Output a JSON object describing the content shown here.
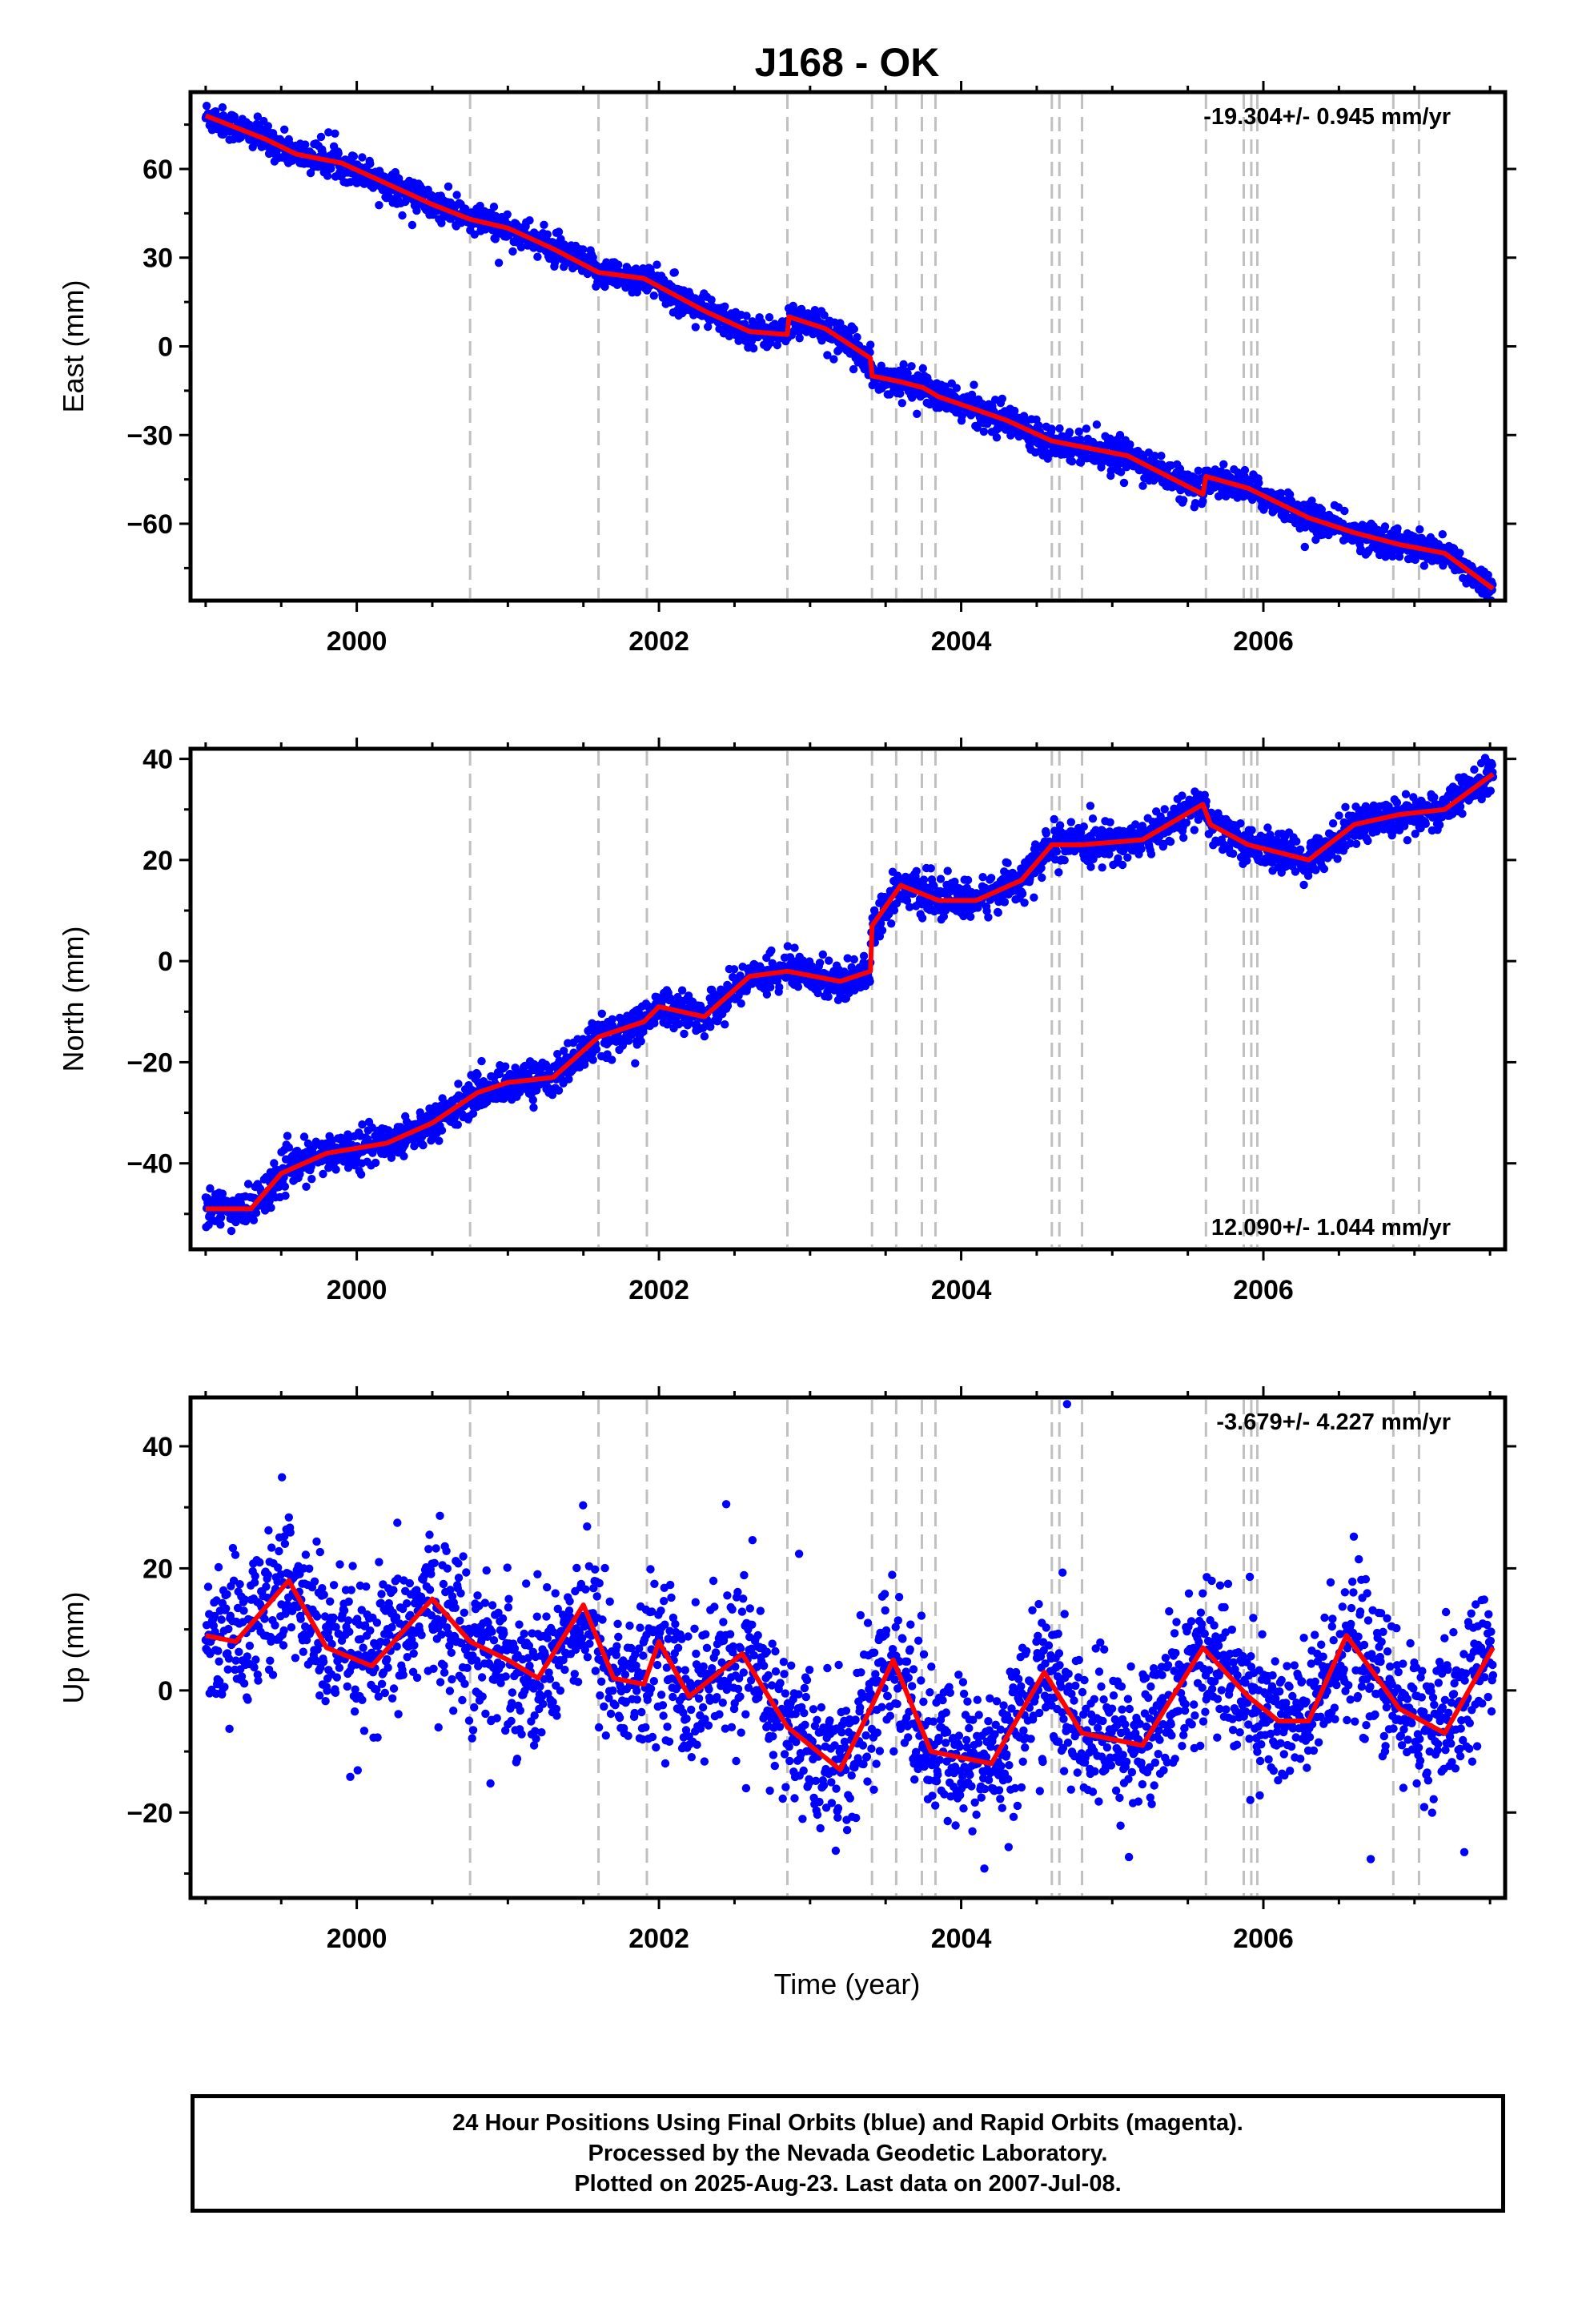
{
  "title": "J168 - OK",
  "xlabel": "Time (year)",
  "caption": [
    "24 Hour Positions Using Final Orbits (blue) and Rapid Orbits (magenta).",
    "Processed by the Nevada Geodetic Laboratory.",
    "Plotted on 2025-Aug-23. Last data on 2007-Jul-08."
  ],
  "colors": {
    "data_points": "#0000ff",
    "model": "#ff0000",
    "steps": "#c0c0c0",
    "frame": "#000000"
  },
  "chart_data": [
    {
      "type": "scatter",
      "panel": "east",
      "ylabel": "East (mm)",
      "rate_label": "-19.304+/- 0.945 mm/yr",
      "rate_position": "top-right",
      "xlim": [
        1998.9,
        2007.6
      ],
      "ylim": [
        -86,
        86
      ],
      "xticks": [
        2000,
        2002,
        2004,
        2006
      ],
      "yticks": [
        -60,
        -30,
        0,
        30,
        60
      ],
      "series": [
        {
          "role": "model",
          "x": [
            1999.0,
            1999.4,
            1999.6,
            1999.9,
            2000.5,
            2000.75,
            2001.0,
            2001.3,
            2001.6,
            2001.9,
            2002.3,
            2002.6,
            2002.85,
            2002.86,
            2003.1,
            2003.4,
            2003.41,
            2003.6,
            2003.75,
            2003.85,
            2004.3,
            2004.6,
            2004.7,
            2005.1,
            2005.6,
            2005.62,
            2005.9,
            2006.3,
            2006.6,
            2006.9,
            2007.2,
            2007.52
          ],
          "y": [
            78,
            70,
            65,
            62,
            48,
            43,
            40,
            33,
            25,
            23,
            12,
            5,
            4,
            10,
            6,
            -4,
            -10,
            -12,
            -14,
            -17,
            -25,
            -32,
            -33,
            -37,
            -50,
            -44,
            -48,
            -58,
            -63,
            -67,
            -70,
            -82
          ]
        },
        {
          "role": "observations",
          "noise_mm": 2.5,
          "count": 2600
        }
      ]
    },
    {
      "type": "scatter",
      "panel": "north",
      "ylabel": "North (mm)",
      "rate_label": "12.090+/- 1.044 mm/yr",
      "rate_position": "bottom-right",
      "xlim": [
        1998.9,
        2007.6
      ],
      "ylim": [
        -57,
        42
      ],
      "xticks": [
        2000,
        2002,
        2004,
        2006
      ],
      "yticks": [
        -40,
        -20,
        0,
        20,
        40
      ],
      "series": [
        {
          "role": "model",
          "x": [
            1999.0,
            1999.3,
            1999.5,
            1999.8,
            2000.2,
            2000.5,
            2000.8,
            2001.0,
            2001.3,
            2001.6,
            2001.9,
            2002.0,
            2002.3,
            2002.6,
            2002.85,
            2003.2,
            2003.4,
            2003.41,
            2003.6,
            2003.85,
            2004.1,
            2004.4,
            2004.6,
            2004.8,
            2005.2,
            2005.6,
            2005.65,
            2005.9,
            2006.3,
            2006.6,
            2006.9,
            2007.2,
            2007.52
          ],
          "y": [
            -49,
            -49,
            -42,
            -38,
            -36,
            -32,
            -26,
            -24,
            -23,
            -15,
            -12,
            -9,
            -11,
            -3,
            -2,
            -4,
            -2,
            7,
            15,
            12,
            12,
            16,
            23,
            23,
            24,
            31,
            27,
            23,
            20,
            27,
            29,
            30,
            37
          ]
        },
        {
          "role": "observations",
          "noise_mm": 1.8,
          "count": 2600
        }
      ]
    },
    {
      "type": "scatter",
      "panel": "up",
      "ylabel": "Up (mm)",
      "rate_label": "-3.679+/- 4.227 mm/yr",
      "rate_position": "top-right",
      "xlim": [
        1998.9,
        2007.6
      ],
      "ylim": [
        -34,
        48
      ],
      "xticks": [
        2000,
        2002,
        2004,
        2006
      ],
      "yticks": [
        -20,
        0,
        20,
        40
      ],
      "series": [
        {
          "role": "model",
          "x": [
            1999.0,
            1999.2,
            1999.55,
            1999.8,
            2000.1,
            2000.5,
            2000.75,
            2001.0,
            2001.2,
            2001.5,
            2001.7,
            2001.9,
            2002.0,
            2002.2,
            2002.55,
            2002.85,
            2003.2,
            2003.4,
            2003.55,
            2003.8,
            2004.2,
            2004.55,
            2004.8,
            2005.2,
            2005.6,
            2005.9,
            2006.1,
            2006.3,
            2006.55,
            2006.9,
            2007.2,
            2007.52
          ],
          "y": [
            9,
            8,
            18,
            7,
            4,
            15,
            8,
            5,
            2,
            14,
            2,
            1,
            8,
            -1,
            6,
            -6,
            -13,
            -3,
            5,
            -10,
            -12,
            3,
            -7,
            -9,
            7,
            -1,
            -5,
            -5,
            9,
            -3,
            -7,
            7
          ]
        },
        {
          "role": "observations",
          "noise_mm": 6.0,
          "count": 2600
        }
      ]
    }
  ],
  "step_epochs": [
    2000.75,
    2001.6,
    2001.92,
    2002.85,
    2003.41,
    2003.57,
    2003.74,
    2003.83,
    2004.6,
    2004.65,
    2004.8,
    2005.62,
    2005.87,
    2005.92,
    2005.96,
    2006.86,
    2007.03
  ]
}
